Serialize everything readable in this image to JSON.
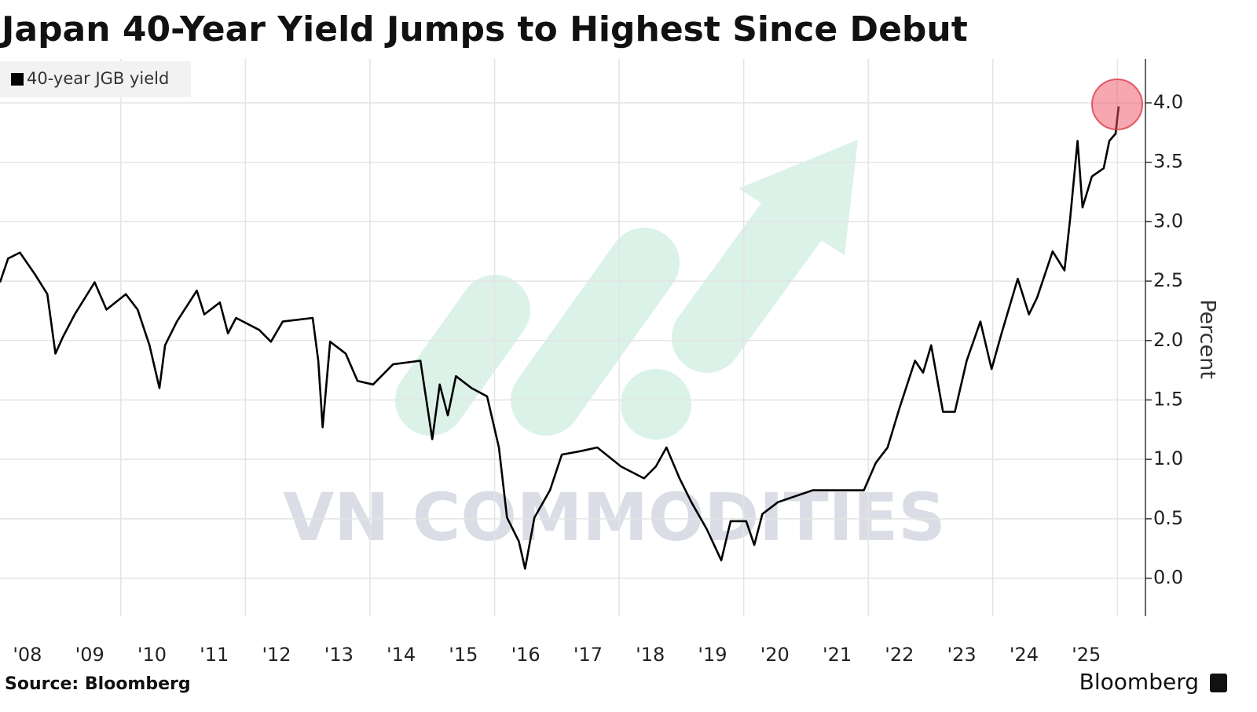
{
  "chart_data": {
    "type": "line",
    "title": "Japan 40-Year Yield Jumps to Highest Since Debut",
    "y_axis_label": "Percent",
    "source": "Source: Bloomberg",
    "brand": "Bloomberg",
    "watermark": "VN COMMODITIES",
    "xlim": [
      2008.06,
      2026.45
    ],
    "ylim": [
      -0.32,
      4.37
    ],
    "xticks": [
      {
        "value": 2008.5,
        "label": "'08"
      },
      {
        "value": 2009.5,
        "label": "'09"
      },
      {
        "value": 2010.5,
        "label": "'10"
      },
      {
        "value": 2011.5,
        "label": "'11"
      },
      {
        "value": 2012.5,
        "label": "'12"
      },
      {
        "value": 2013.5,
        "label": "'13"
      },
      {
        "value": 2014.5,
        "label": "'14"
      },
      {
        "value": 2015.5,
        "label": "'15"
      },
      {
        "value": 2016.5,
        "label": "'16"
      },
      {
        "value": 2017.5,
        "label": "'17"
      },
      {
        "value": 2018.5,
        "label": "'18"
      },
      {
        "value": 2019.5,
        "label": "'19"
      },
      {
        "value": 2020.5,
        "label": "'20"
      },
      {
        "value": 2021.5,
        "label": "'21"
      },
      {
        "value": 2022.5,
        "label": "'22"
      },
      {
        "value": 2023.5,
        "label": "'23"
      },
      {
        "value": 2024.5,
        "label": "'24"
      },
      {
        "value": 2025.5,
        "label": "'25"
      }
    ],
    "x_gridlines": [
      2010,
      2012,
      2014,
      2016,
      2018,
      2020,
      2022,
      2024,
      2026
    ],
    "yticks": [
      {
        "value": 0,
        "label": "0.0"
      },
      0.5,
      {
        "value": 1,
        "label": "1.0"
      },
      1.5,
      {
        "value": 2,
        "label": "2.0"
      },
      2.5,
      {
        "value": 3,
        "label": "3.0"
      },
      3.5,
      {
        "value": 4,
        "label": "4.0"
      }
    ],
    "grid": true,
    "legend": "top-left",
    "series": [
      {
        "name": "40-year JGB yield",
        "color": "#000000",
        "x": [
          2008.06,
          2008.19,
          2008.38,
          2008.63,
          2008.82,
          2008.95,
          2009.07,
          2009.26,
          2009.58,
          2009.77,
          2010.08,
          2010.27,
          2010.46,
          2010.62,
          2010.71,
          2010.9,
          2011.22,
          2011.34,
          2011.59,
          2011.72,
          2011.85,
          2012.22,
          2012.41,
          2012.6,
          2013.08,
          2013.17,
          2013.24,
          2013.36,
          2013.61,
          2013.8,
          2014.05,
          2014.37,
          2014.81,
          2015.0,
          2015.12,
          2015.25,
          2015.38,
          2015.63,
          2015.88,
          2016.07,
          2016.2,
          2016.39,
          2016.49,
          2016.64,
          2016.89,
          2017.08,
          2017.39,
          2017.65,
          2018.03,
          2018.4,
          2018.59,
          2018.76,
          2018.97,
          2019.16,
          2019.41,
          2019.64,
          2019.79,
          2020.04,
          2020.17,
          2020.3,
          2020.55,
          2021.11,
          2021.43,
          2021.93,
          2022.12,
          2022.31,
          2022.5,
          2022.75,
          2022.88,
          2023.01,
          2023.2,
          2023.39,
          2023.58,
          2023.8,
          2023.98,
          2024.14,
          2024.4,
          2024.58,
          2024.71,
          2024.96,
          2025.15,
          2025.24,
          2025.36,
          2025.44,
          2025.59,
          2025.78,
          2025.87,
          2025.97,
          2026.02
        ],
        "values": [
          2.49,
          2.69,
          2.74,
          2.55,
          2.39,
          1.89,
          2.03,
          2.22,
          2.49,
          2.26,
          2.39,
          2.26,
          1.96,
          1.6,
          1.96,
          2.16,
          2.42,
          2.22,
          2.32,
          2.06,
          2.19,
          2.09,
          1.99,
          2.16,
          2.19,
          1.83,
          1.27,
          1.99,
          1.89,
          1.66,
          1.63,
          1.8,
          1.83,
          1.17,
          1.63,
          1.37,
          1.7,
          1.6,
          1.53,
          1.1,
          0.51,
          0.31,
          0.08,
          0.51,
          0.74,
          1.04,
          1.07,
          1.1,
          0.94,
          0.84,
          0.94,
          1.1,
          0.84,
          0.64,
          0.41,
          0.15,
          0.48,
          0.48,
          0.28,
          0.54,
          0.64,
          0.74,
          0.74,
          0.74,
          0.97,
          1.1,
          1.43,
          1.83,
          1.73,
          1.96,
          1.4,
          1.4,
          1.83,
          2.16,
          1.76,
          2.06,
          2.52,
          2.22,
          2.36,
          2.75,
          2.59,
          3.02,
          3.68,
          3.12,
          3.38,
          3.45,
          3.68,
          3.74,
          3.97
        ]
      }
    ]
  }
}
